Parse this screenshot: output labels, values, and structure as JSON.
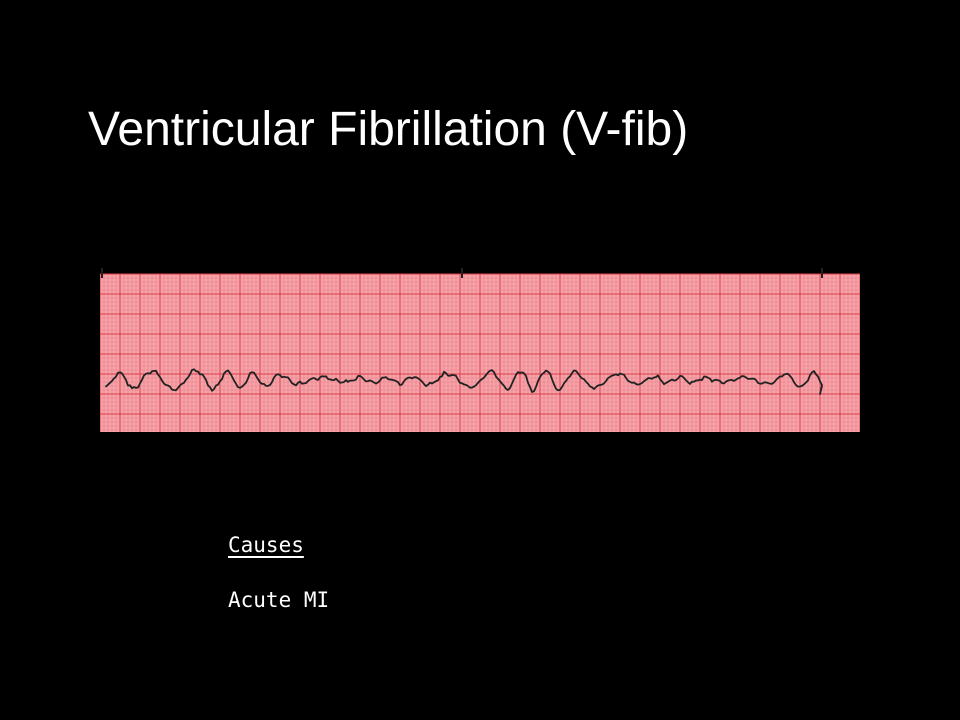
{
  "slide": {
    "title": "Ventricular Fibrillation (V-fib)"
  },
  "ecg": {
    "paper_color": "#f2a5aa",
    "grid_major_color": "#e03a46",
    "grid_minor_color": "#f07a80",
    "trace_color": "#222222",
    "icon": "ecg-rhythm-strip"
  },
  "causes": {
    "heading": "Causes",
    "items": [
      "Acute MI"
    ]
  }
}
